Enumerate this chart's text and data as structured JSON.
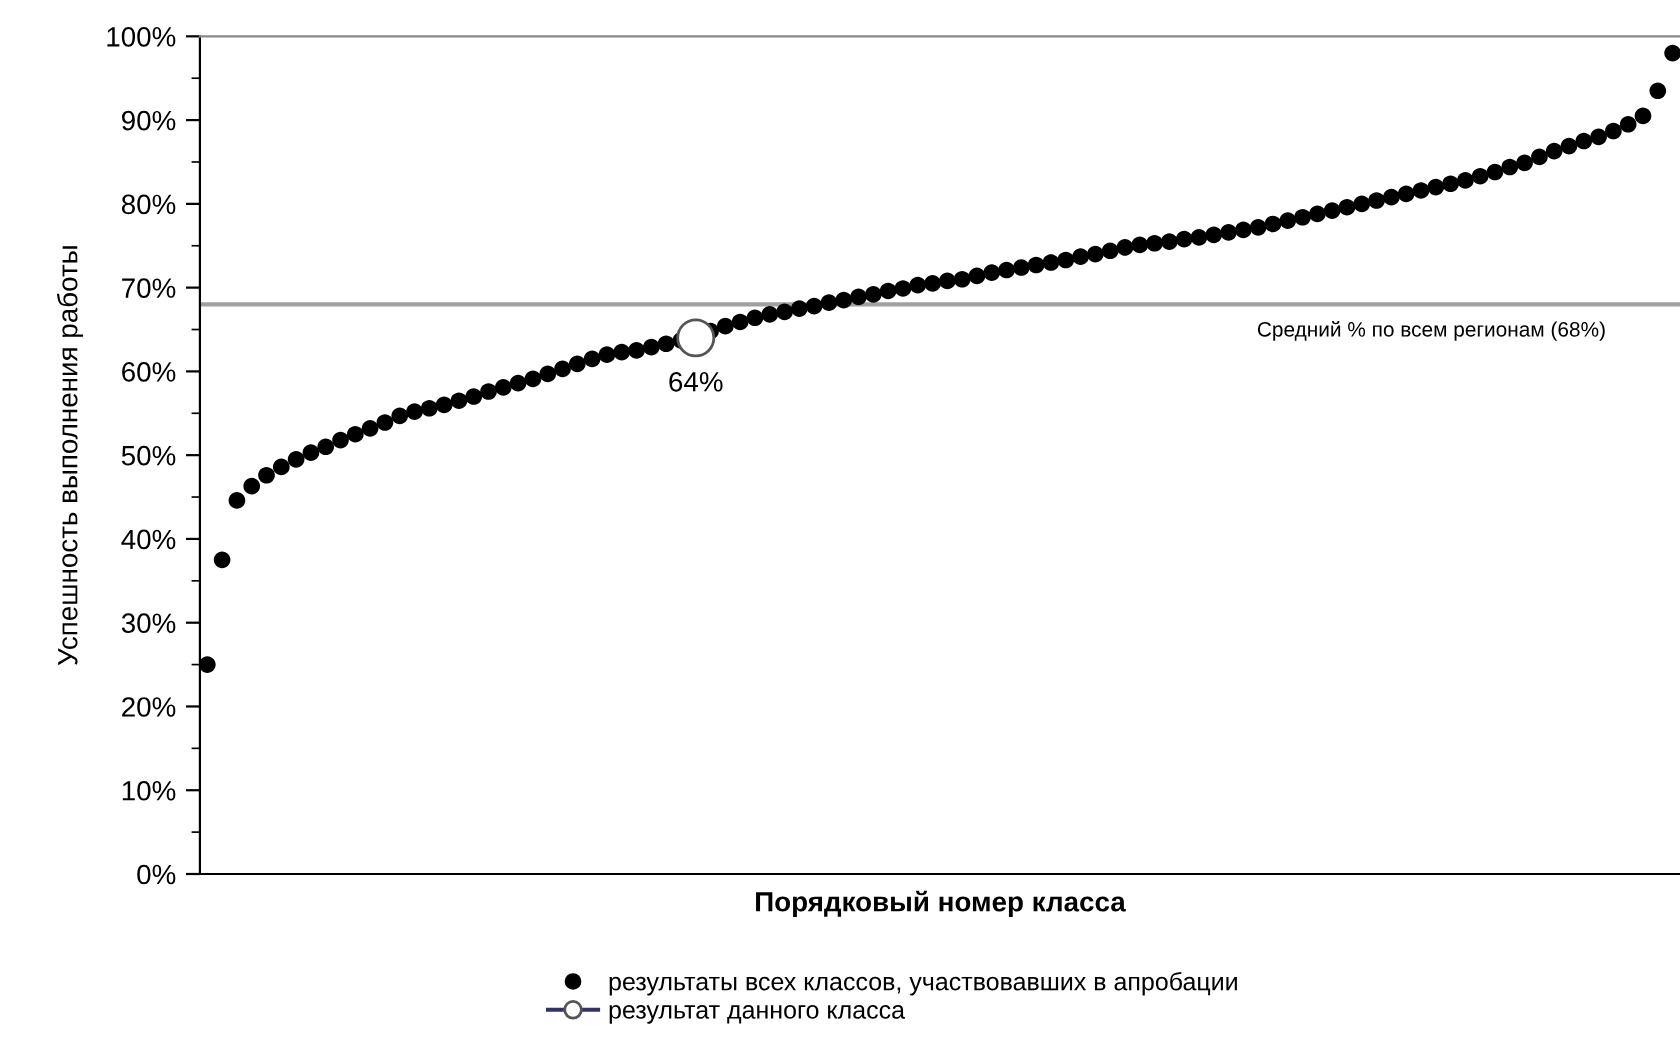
{
  "chart_data": {
    "type": "scatter",
    "xlabel": "Порядковый номер класса",
    "ylabel": "Успешность выполнения работы",
    "categories": [
      null,
      null,
      null,
      null,
      null,
      null,
      null,
      null,
      null,
      null,
      null,
      null,
      null,
      null,
      null,
      null,
      null,
      null,
      null,
      null,
      null,
      null,
      null,
      null,
      null,
      null,
      null,
      null,
      null,
      null,
      null,
      null,
      null,
      null,
      null,
      null,
      null,
      null,
      null,
      null,
      null,
      null,
      null,
      null,
      null,
      null,
      null,
      null,
      null,
      null,
      null,
      null,
      null,
      null,
      null,
      null,
      null,
      null,
      null,
      null,
      null,
      null,
      null,
      null,
      null,
      null,
      null,
      null,
      null,
      null,
      null,
      null,
      null,
      null,
      null,
      null,
      null,
      null,
      null,
      null,
      null,
      null,
      null,
      null,
      null,
      null,
      null,
      null,
      null,
      null,
      null,
      null,
      null,
      null,
      null,
      null,
      null,
      null,
      null,
      null
    ],
    "series": [
      {
        "name": "результаты всех классов, участвовавших в апробации",
        "marker": "circle",
        "color": "#000000",
        "values": [
          25,
          37.5,
          44.6,
          46.3,
          47.6,
          48.6,
          49.5,
          50.3,
          51,
          51.8,
          52.5,
          53.2,
          53.9,
          54.7,
          55.2,
          55.6,
          56,
          56.5,
          57,
          57.6,
          58.1,
          58.6,
          59.1,
          59.7,
          60.3,
          60.9,
          61.5,
          62,
          62.3,
          62.5,
          62.9,
          63.3,
          63.7,
          null,
          64.8,
          65.4,
          65.9,
          66.4,
          66.8,
          67.1,
          67.5,
          67.8,
          68.2,
          68.5,
          68.9,
          69.2,
          69.6,
          69.9,
          70.3,
          70.5,
          70.8,
          71,
          71.4,
          71.8,
          72.1,
          72.4,
          72.7,
          73,
          73.3,
          73.7,
          74,
          74.4,
          74.8,
          75.1,
          75.3,
          75.5,
          75.8,
          76,
          76.3,
          76.6,
          76.9,
          77.2,
          77.6,
          78,
          78.4,
          78.8,
          79.2,
          79.6,
          80,
          80.4,
          80.8,
          81.2,
          81.6,
          82,
          82.4,
          82.8,
          83.3,
          83.8,
          84.4,
          84.9,
          85.6,
          86.3,
          86.9,
          87.5,
          88,
          88.7,
          89.5,
          90.5,
          93.5,
          98
        ]
      },
      {
        "name": "результат данного класса",
        "type": "line",
        "marker": "circle",
        "color": "#ffffff",
        "values": [
          null,
          null,
          null,
          null,
          null,
          null,
          null,
          null,
          null,
          null,
          null,
          null,
          null,
          null,
          null,
          null,
          null,
          null,
          null,
          null,
          null,
          null,
          null,
          null,
          null,
          null,
          null,
          null,
          null,
          null,
          null,
          null,
          null,
          64,
          null,
          null,
          null,
          null,
          null,
          null,
          null,
          null,
          null,
          null,
          null,
          null,
          null,
          null,
          null,
          null,
          null,
          null,
          null,
          null,
          null,
          null,
          null,
          null,
          null,
          null,
          null,
          null,
          null,
          null,
          null,
          null,
          null,
          null,
          null,
          null,
          null,
          null,
          null,
          null,
          null,
          null,
          null,
          null,
          null,
          null,
          null,
          null,
          null,
          null,
          null,
          null,
          null,
          null,
          null,
          null,
          null,
          null,
          null,
          null,
          null,
          null,
          null,
          null,
          null,
          null
        ],
        "value_labels": [
          null,
          null,
          null,
          null,
          null,
          null,
          null,
          null,
          null,
          null,
          null,
          null,
          null,
          null,
          null,
          null,
          null,
          null,
          null,
          null,
          null,
          null,
          null,
          null,
          null,
          null,
          null,
          null,
          null,
          null,
          null,
          null,
          null,
          "64%",
          null,
          null,
          null,
          null,
          null,
          null,
          null,
          null,
          null,
          null,
          null,
          null,
          null,
          null,
          null,
          null,
          null,
          null,
          null,
          null,
          null,
          null,
          null,
          null,
          null,
          null,
          null,
          null,
          null,
          null,
          null,
          null,
          null,
          null,
          null,
          null,
          null,
          null,
          null,
          null,
          null,
          null,
          null,
          null,
          null,
          null,
          null,
          null,
          null,
          null,
          null,
          null,
          null,
          null,
          null,
          null,
          null,
          null,
          null,
          null,
          null,
          null,
          null,
          null,
          null,
          null
        ]
      }
    ],
    "ylim": [
      0,
      100
    ],
    "yticks": [
      {
        "value": 0,
        "label": "0%"
      },
      {
        "value": 5,
        "label": null
      },
      {
        "value": 10,
        "label": "10%"
      },
      {
        "value": 15,
        "label": null
      },
      {
        "value": 20,
        "label": "20%"
      },
      {
        "value": 25,
        "label": null
      },
      {
        "value": 30,
        "label": "30%"
      },
      {
        "value": 35,
        "label": null
      },
      {
        "value": 40,
        "label": "40%"
      },
      {
        "value": 45,
        "label": null
      },
      {
        "value": 50,
        "label": "50%"
      },
      {
        "value": 55,
        "label": null
      },
      {
        "value": 60,
        "label": "60%"
      },
      {
        "value": 65,
        "label": null
      },
      {
        "value": 70,
        "label": "70%"
      },
      {
        "value": 75,
        "label": null
      },
      {
        "value": 80,
        "label": "80%"
      },
      {
        "value": 85,
        "label": null
      },
      {
        "value": 90,
        "label": "90%"
      },
      {
        "value": 95,
        "label": null
      },
      {
        "value": 100,
        "label": "100%"
      }
    ],
    "ref_lines": [
      {
        "axis": "y",
        "value": 68,
        "label": "Средний % по всем регионам (68%)",
        "color": "#a0a0a0"
      }
    ],
    "grid": false,
    "legend": "bottom"
  }
}
